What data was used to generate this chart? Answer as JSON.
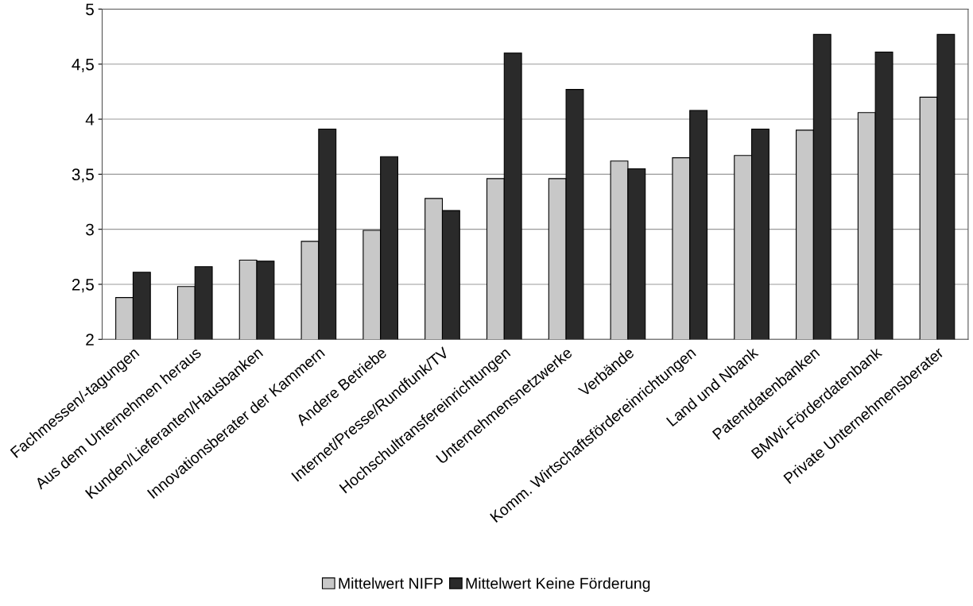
{
  "chart_data": {
    "type": "bar",
    "categories": [
      "Fachmessen/-tagungen",
      "Aus dem Unternehmen heraus",
      "Kunden/Lieferanten/Hausbanken",
      "Innovationsberater der Kammern",
      "Andere Betriebe",
      "Internet/Presse/Rundfunk/TV",
      "Hochschultransfereinrichtungen",
      "Unternehmensnetzwerke",
      "Verbände",
      "Komm. Wirtschaftsfördereinrichtungen",
      "Land und Nbank",
      "Patentdatenbanken",
      "BMWi-Förderdatenbank",
      "Private Unternehmensberater"
    ],
    "series": [
      {
        "name": "Mittelwert NIFP",
        "color": "#c8c8c8",
        "values": [
          2.38,
          2.48,
          2.72,
          2.89,
          2.99,
          3.28,
          3.46,
          3.46,
          3.62,
          3.65,
          3.67,
          3.9,
          4.06,
          4.2
        ]
      },
      {
        "name": "Mittelwert Keine Förderung",
        "color": "#2a2a2a",
        "values": [
          2.61,
          2.66,
          2.71,
          3.91,
          3.66,
          3.17,
          4.6,
          4.27,
          3.55,
          4.08,
          3.91,
          4.77,
          4.61,
          4.77
        ]
      }
    ],
    "ylim": [
      2,
      5
    ],
    "yticks": [
      2,
      {
        "value": 2.5,
        "label": "2,5"
      },
      3,
      {
        "value": 3.5,
        "label": "3,5"
      },
      4,
      {
        "value": 4.5,
        "label": "4,5"
      },
      5
    ],
    "grid": "y",
    "legend": "bottom"
  }
}
